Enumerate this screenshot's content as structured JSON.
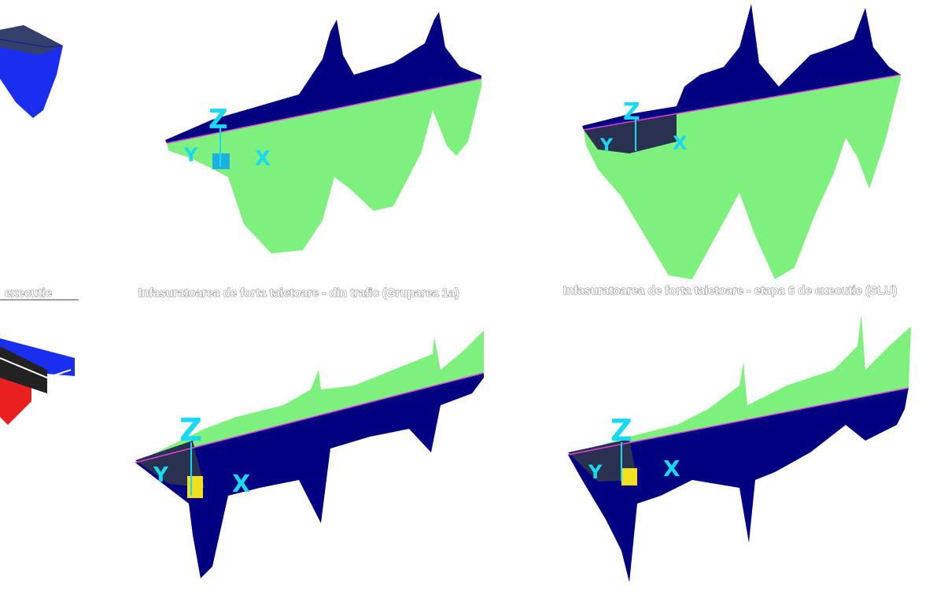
{
  "captions": [
    "executie",
    "Infasuratoarea de forta taietoare - din trafic (Gruparea 1a)",
    "Infasuratoarea de forta taietoare - etapa 6 de executie (SLU)"
  ],
  "panels": [
    {
      "axes": [
        "Z",
        "Y",
        "X"
      ]
    },
    {
      "axes": [
        "Z",
        "Y",
        "X"
      ]
    },
    {
      "axes": [
        "Z",
        "Y",
        "X"
      ]
    },
    {
      "axes": [
        "Z",
        "Y",
        "X"
      ]
    }
  ]
}
